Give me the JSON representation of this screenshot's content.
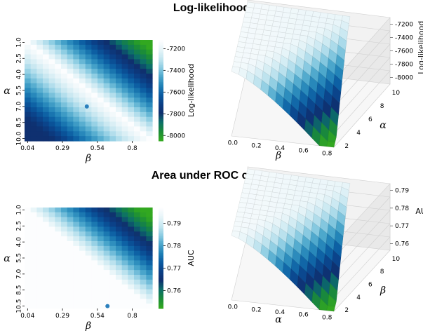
{
  "titles": {
    "top": "Log-likelihood",
    "bottom": "Area under ROC curve"
  },
  "colors": {
    "ramp": [
      "#fcfdfe",
      "#e6f4f8",
      "#c4e6f0",
      "#8ccce2",
      "#4aa6cb",
      "#1f80b6",
      "#0a5aa0",
      "#0b3f86",
      "#0f2f6e",
      "#0c6e6a",
      "#1a8a3a",
      "#32a820"
    ],
    "point": "#2b80bd",
    "pane": "#efefef",
    "grid": "#d0d0d0"
  },
  "chart_data": [
    {
      "type": "heatmap",
      "title": "Log-likelihood",
      "xlabel": "β",
      "ylabel": "α",
      "x_ticklabels": [
        "0.04",
        "0.29",
        "0.54",
        "0.8"
      ],
      "y_ticklabels": [
        "1.0",
        "2.5",
        "4.0",
        "5.5",
        "7.0",
        "8.5",
        "10.0"
      ],
      "colorbar": {
        "label": "Log-likelihood",
        "ticks": [
          "-7200",
          "-7400",
          "-7600",
          "-7800",
          "-8000"
        ],
        "range": [
          -8050,
          -7120
        ]
      },
      "grid_size": [
        21,
        21
      ],
      "optimum": {
        "alpha": 7.0,
        "beta": 0.47
      }
    },
    {
      "type": "surface",
      "title": "Log-likelihood",
      "xlabel": "β",
      "ylabel": "α",
      "zlabel": "Log-likelihood",
      "x_ticklabels": [
        "0.0",
        "0.2",
        "0.4",
        "0.6",
        "0.8"
      ],
      "y_ticklabels": [
        "2",
        "4",
        "6",
        "8",
        "10"
      ],
      "z_ticklabels": [
        "-7200",
        "-7400",
        "-7600",
        "-7800",
        "-8000"
      ]
    },
    {
      "type": "heatmap",
      "title": "Area under ROC curve",
      "xlabel": "β",
      "ylabel": "α",
      "x_ticklabels": [
        "0.04",
        "0.29",
        "0.54",
        "0.8"
      ],
      "y_ticklabels": [
        "1.0",
        "2.5",
        "4.0",
        "5.5",
        "7.0",
        "8.5",
        "10.5"
      ],
      "colorbar": {
        "label": "AUC",
        "ticks": [
          "0.79",
          "0.78",
          "0.77",
          "0.76"
        ],
        "range": [
          0.752,
          0.797
        ]
      },
      "grid_size": [
        21,
        21
      ],
      "optimum": {
        "alpha": 10.5,
        "beta": 0.62
      }
    },
    {
      "type": "surface",
      "title": "Area under ROC curve",
      "xlabel": "α",
      "ylabel": "β",
      "zlabel": "AUC",
      "x_ticklabels": [
        "0.0",
        "0.2",
        "0.4",
        "0.6",
        "0.8"
      ],
      "y_ticklabels": [
        "2",
        "4",
        "6",
        "8",
        "10"
      ],
      "z_ticklabels": [
        "0.79",
        "0.78",
        "0.77",
        "0.76"
      ]
    }
  ]
}
